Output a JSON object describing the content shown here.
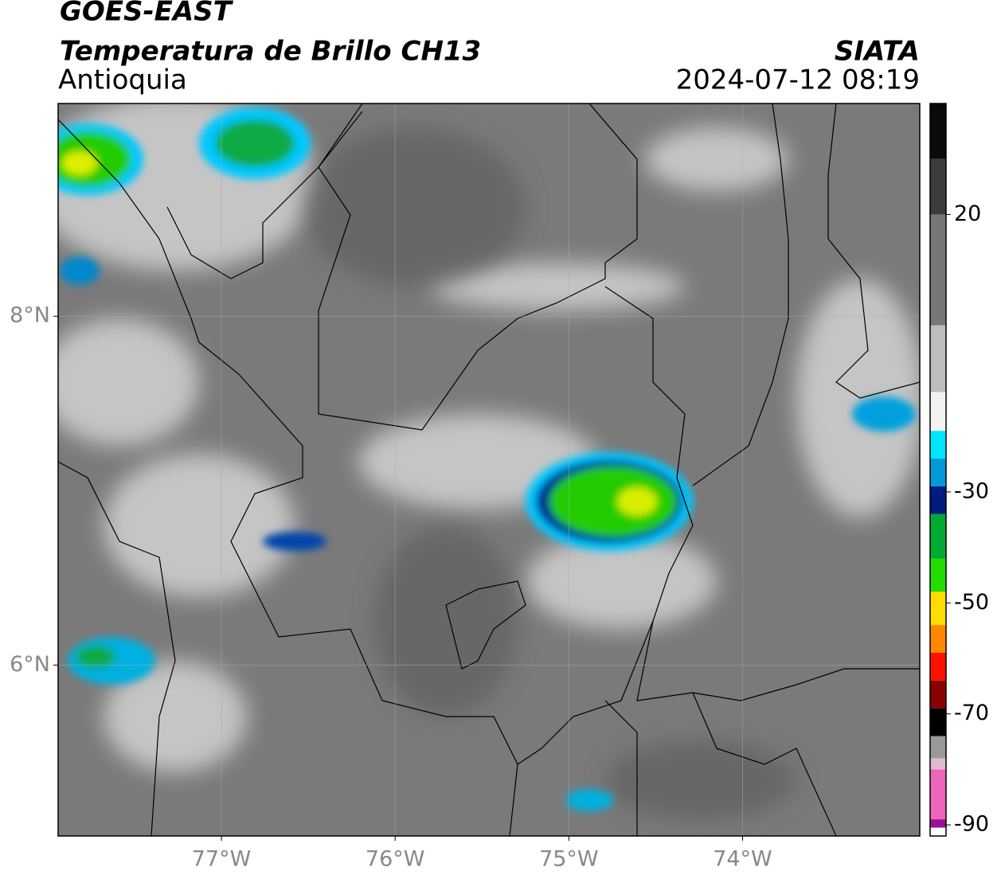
{
  "chart_data": {
    "type": "map",
    "title": "GOES-EAST",
    "subtitle": "Temperatura de Brillo CH13",
    "region": "Antioquia",
    "source": "SIATA",
    "timestamp": "2024-07-12 08:19",
    "xlim": [
      -77.94,
      -72.98
    ],
    "ylim": [
      5.02,
      9.22
    ],
    "xticks": [
      {
        "value": -77,
        "label": "77°W"
      },
      {
        "value": -76,
        "label": "76°W"
      },
      {
        "value": -75,
        "label": "75°W"
      },
      {
        "value": -74,
        "label": "74°W"
      }
    ],
    "yticks": [
      {
        "value": 8,
        "label": "8°N"
      },
      {
        "value": 6,
        "label": "6°N"
      }
    ],
    "grid": true,
    "colorbar": {
      "lim": [
        -92,
        40
      ],
      "ticks": [
        20,
        -30,
        -50,
        -70,
        -90
      ],
      "stops": [
        {
          "value": 40,
          "color": "#0a0a0a"
        },
        {
          "value": 30,
          "color": "#3c3c3c"
        },
        {
          "value": 20,
          "color": "#777777"
        },
        {
          "value": 0,
          "color": "#bdbdbd"
        },
        {
          "value": -12,
          "color": "#f2f2f2"
        },
        {
          "value": -19,
          "color": "#00e5ff"
        },
        {
          "value": -24,
          "color": "#0099d9"
        },
        {
          "value": -29,
          "color": "#001a80"
        },
        {
          "value": -34,
          "color": "#00aa33"
        },
        {
          "value": -42,
          "color": "#22dd00"
        },
        {
          "value": -48,
          "color": "#ffdd00"
        },
        {
          "value": -54,
          "color": "#ff8800"
        },
        {
          "value": -59,
          "color": "#ff1100"
        },
        {
          "value": -64,
          "color": "#880000"
        },
        {
          "value": -69,
          "color": "#000000"
        },
        {
          "value": -74,
          "color": "#999999"
        },
        {
          "value": -78,
          "color": "#ddbbcc"
        },
        {
          "value": -80,
          "color": "#ee66bb"
        },
        {
          "value": -89,
          "color": "#991199"
        },
        {
          "value": -90.5,
          "color": "#ffffff"
        }
      ]
    }
  }
}
